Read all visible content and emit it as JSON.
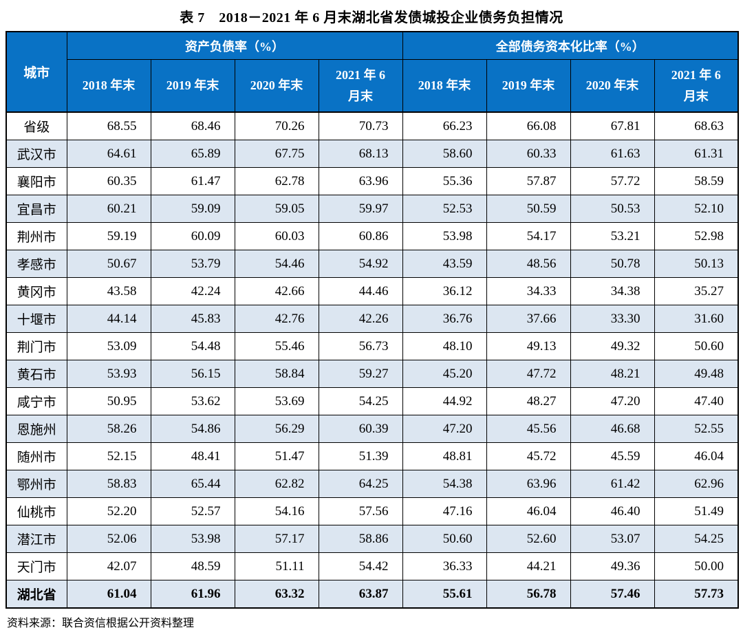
{
  "title": "表 7　2018－2021 年 6 月末湖北省发债城投企业债务负担情况",
  "table": {
    "corner_header": "城市",
    "groups": [
      {
        "label": "资产负债率（%）",
        "columns": [
          "2018 年末",
          "2019 年末",
          "2020 年末",
          "2021 年 6 月末"
        ]
      },
      {
        "label": "全部债务资本化比率（%）",
        "columns": [
          "2018 年末",
          "2019 年末",
          "2020 年末",
          "2021 年 6 月末"
        ]
      }
    ],
    "rows": [
      {
        "city": "省级",
        "bold": false,
        "values": [
          "68.55",
          "68.46",
          "70.26",
          "70.73",
          "66.23",
          "66.08",
          "67.81",
          "68.63"
        ]
      },
      {
        "city": "武汉市",
        "bold": false,
        "values": [
          "64.61",
          "65.89",
          "67.75",
          "68.13",
          "58.60",
          "60.33",
          "61.63",
          "61.31"
        ]
      },
      {
        "city": "襄阳市",
        "bold": false,
        "values": [
          "60.35",
          "61.47",
          "62.78",
          "63.96",
          "55.36",
          "57.87",
          "57.72",
          "58.59"
        ]
      },
      {
        "city": "宜昌市",
        "bold": false,
        "values": [
          "60.21",
          "59.09",
          "59.05",
          "59.97",
          "52.53",
          "50.59",
          "50.53",
          "52.10"
        ]
      },
      {
        "city": "荆州市",
        "bold": false,
        "values": [
          "59.19",
          "60.09",
          "60.03",
          "60.86",
          "53.98",
          "54.17",
          "53.21",
          "52.98"
        ]
      },
      {
        "city": "孝感市",
        "bold": false,
        "values": [
          "50.67",
          "53.79",
          "54.46",
          "54.92",
          "43.59",
          "48.56",
          "50.78",
          "50.13"
        ]
      },
      {
        "city": "黄冈市",
        "bold": false,
        "values": [
          "43.58",
          "42.24",
          "42.66",
          "44.46",
          "36.12",
          "34.33",
          "34.38",
          "35.27"
        ]
      },
      {
        "city": "十堰市",
        "bold": false,
        "values": [
          "44.14",
          "45.83",
          "42.76",
          "42.26",
          "36.76",
          "37.66",
          "33.30",
          "31.60"
        ]
      },
      {
        "city": "荆门市",
        "bold": false,
        "values": [
          "53.09",
          "54.48",
          "55.46",
          "56.73",
          "48.10",
          "49.13",
          "49.32",
          "50.60"
        ]
      },
      {
        "city": "黄石市",
        "bold": false,
        "values": [
          "53.93",
          "56.15",
          "58.84",
          "59.27",
          "45.20",
          "47.72",
          "48.21",
          "49.48"
        ]
      },
      {
        "city": "咸宁市",
        "bold": false,
        "values": [
          "50.95",
          "53.62",
          "53.69",
          "54.25",
          "44.92",
          "48.27",
          "47.20",
          "47.40"
        ]
      },
      {
        "city": "恩施州",
        "bold": false,
        "values": [
          "58.26",
          "54.86",
          "56.29",
          "60.39",
          "47.20",
          "45.56",
          "46.68",
          "52.55"
        ]
      },
      {
        "city": "随州市",
        "bold": false,
        "values": [
          "52.15",
          "48.41",
          "51.47",
          "51.39",
          "48.81",
          "45.72",
          "45.59",
          "46.04"
        ]
      },
      {
        "city": "鄂州市",
        "bold": false,
        "values": [
          "58.83",
          "65.44",
          "62.82",
          "64.25",
          "54.38",
          "63.96",
          "61.42",
          "62.96"
        ]
      },
      {
        "city": "仙桃市",
        "bold": false,
        "values": [
          "52.20",
          "52.57",
          "54.16",
          "57.56",
          "47.16",
          "46.04",
          "46.40",
          "51.49"
        ]
      },
      {
        "city": "潜江市",
        "bold": false,
        "values": [
          "52.06",
          "53.98",
          "57.17",
          "58.86",
          "50.60",
          "52.60",
          "53.07",
          "54.25"
        ]
      },
      {
        "city": "天门市",
        "bold": false,
        "values": [
          "42.07",
          "48.59",
          "51.11",
          "54.42",
          "36.33",
          "44.21",
          "49.36",
          "50.00"
        ]
      },
      {
        "city": "湖北省",
        "bold": true,
        "values": [
          "61.04",
          "61.96",
          "63.32",
          "63.87",
          "55.61",
          "56.78",
          "57.46",
          "57.73"
        ]
      }
    ]
  },
  "footer": {
    "source": "资料来源：联合资信根据公开资料整理"
  },
  "colors": {
    "header_bg": "#0972C5",
    "header_text": "#FFFFFF",
    "stripe_bg": "#DCE6F1",
    "border": "#000000"
  }
}
